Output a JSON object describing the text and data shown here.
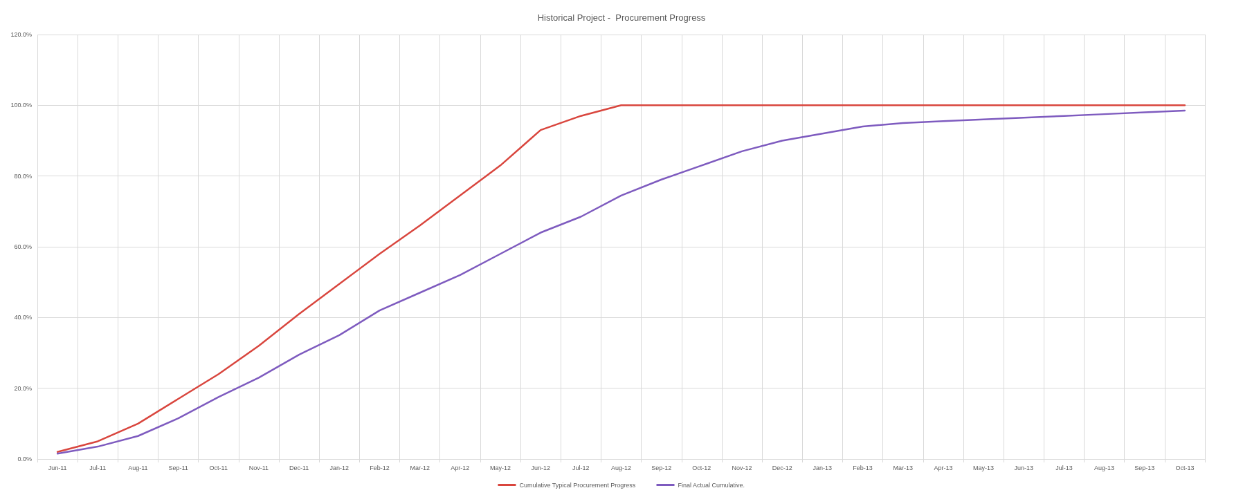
{
  "chart_data": {
    "type": "line",
    "title": "Historical Project -  Procurement Progress",
    "categories": [
      "Jun-11",
      "Jul-11",
      "Aug-11",
      "Sep-11",
      "Oct-11",
      "Nov-11",
      "Dec-11",
      "Jan-12",
      "Feb-12",
      "Mar-12",
      "Apr-12",
      "May-12",
      "Jun-12",
      "Jul-12",
      "Aug-12",
      "Sep-12",
      "Oct-12",
      "Nov-12",
      "Dec-12",
      "Jan-13",
      "Feb-13",
      "Mar-13",
      "Apr-13",
      "May-13",
      "Jun-13",
      "Jul-13",
      "Aug-13",
      "Sep-13",
      "Oct-13"
    ],
    "series": [
      {
        "name": "Cumulative Typical Procurement Progress",
        "color": "#d9463e",
        "values": [
          2,
          5,
          10,
          17,
          24,
          32,
          41,
          49.5,
          58,
          66,
          74.5,
          83,
          93,
          97,
          100,
          100,
          100,
          100,
          100,
          100,
          100,
          100,
          100,
          100,
          100,
          100,
          100,
          100,
          100
        ]
      },
      {
        "name": "Final Actual Cumulative.",
        "color": "#7e5bbf",
        "values": [
          1.5,
          3.5,
          6.5,
          11.5,
          17.5,
          23,
          29.5,
          35,
          42,
          47,
          52,
          58,
          64,
          68.5,
          74.5,
          79,
          83,
          87,
          90,
          92,
          94,
          95,
          95.5,
          96,
          96.5,
          97,
          97.5,
          98,
          98.5
        ]
      }
    ],
    "ylim": [
      0,
      120
    ],
    "yticks": [
      {
        "value": 0,
        "label": "0.0%"
      },
      {
        "value": 20,
        "label": "20.0%"
      },
      {
        "value": 40,
        "label": "40.0%"
      },
      {
        "value": 60,
        "label": "60.0%"
      },
      {
        "value": 80,
        "label": "80.0%"
      },
      {
        "value": 100,
        "label": "100.0%"
      },
      {
        "value": 120,
        "label": "120.0%"
      }
    ],
    "grid": true,
    "legend": "bottom",
    "marker": "none",
    "line_style": "solid"
  }
}
